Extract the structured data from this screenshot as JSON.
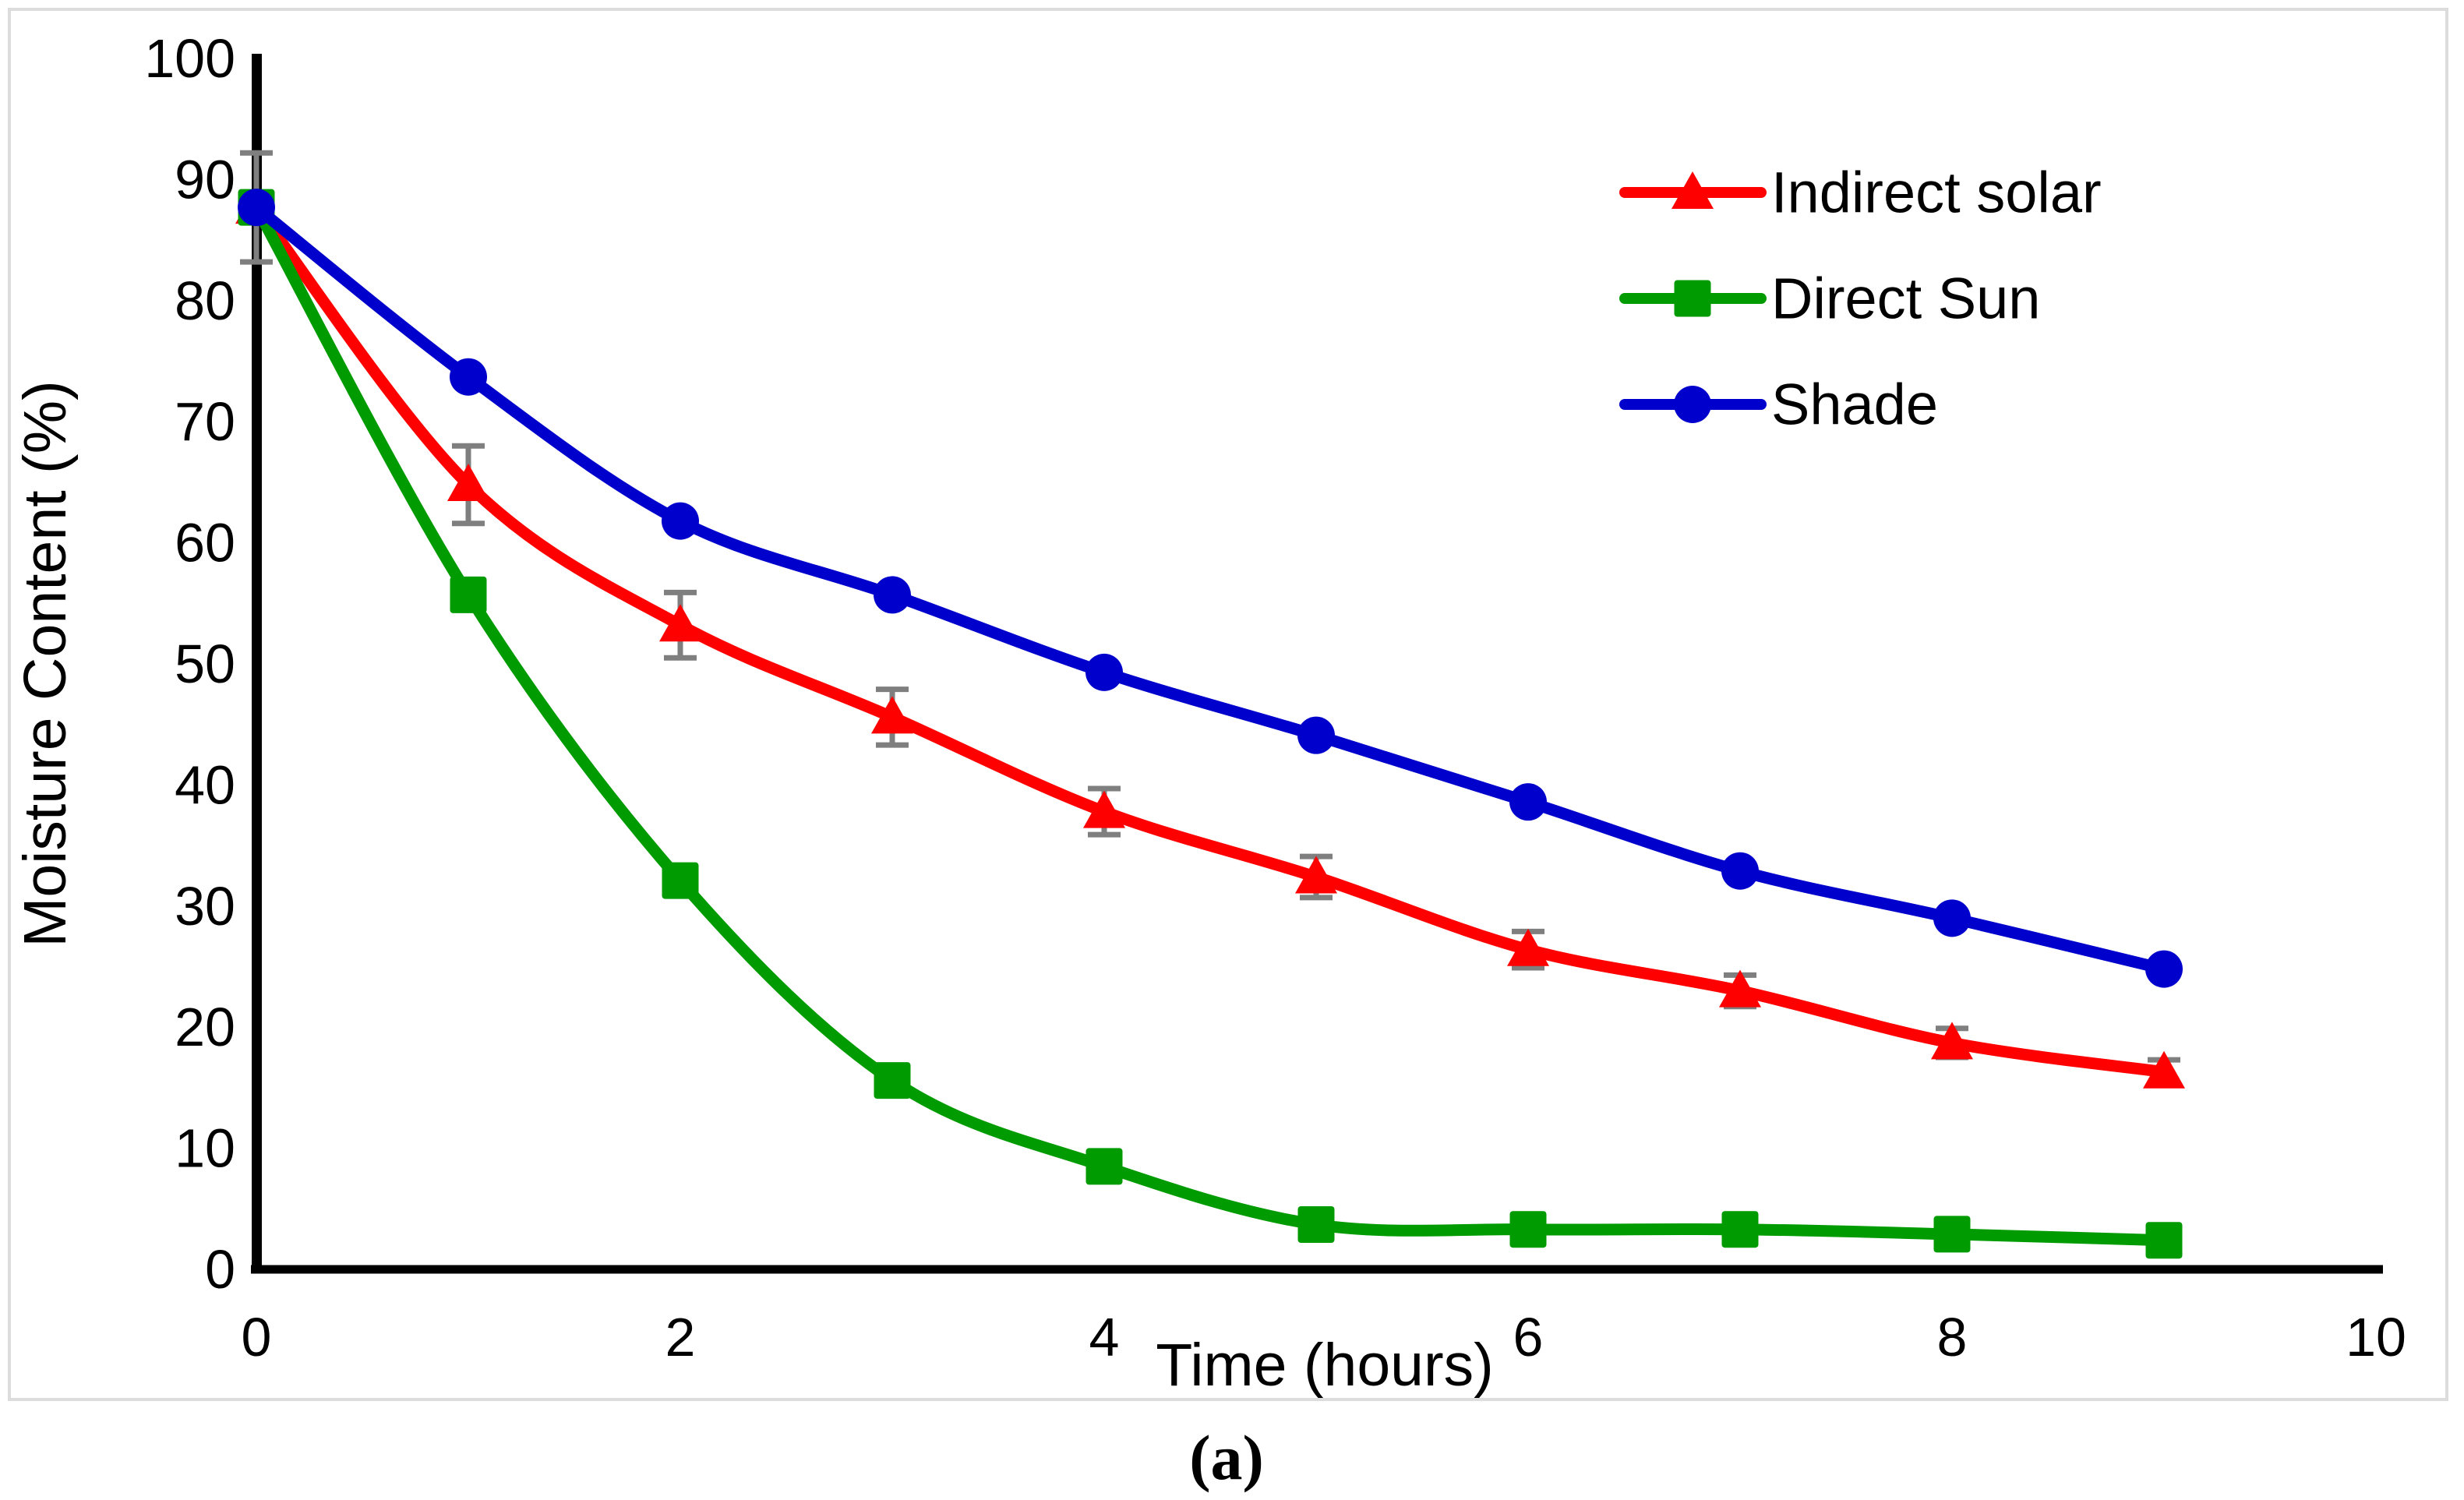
{
  "figure": {
    "caption": "(a)",
    "border_color": "#dcdcdc",
    "background": "#ffffff"
  },
  "chart_data": {
    "type": "line",
    "title": "",
    "xlabel": "Time (hours)",
    "ylabel": "Moisture Content (%)",
    "x": [
      0,
      1,
      2,
      3,
      4,
      5,
      6,
      7,
      8,
      9
    ],
    "xlim": [
      0,
      10
    ],
    "ylim": [
      0,
      100
    ],
    "x_ticks": [
      0,
      2,
      4,
      6,
      8,
      10
    ],
    "y_ticks": [
      0,
      10,
      20,
      30,
      40,
      50,
      60,
      70,
      80,
      90,
      100
    ],
    "grid": false,
    "legend_position": "inside-upper-right",
    "line_smoothing": true,
    "error_bar_color": "#7f7f7f",
    "axis_color": "#000000",
    "series": [
      {
        "name": "Indirect solar",
        "color": "#ff0000",
        "marker": "triangle",
        "values": [
          87.7,
          64.8,
          53.2,
          45.6,
          37.8,
          32.4,
          26.4,
          23.0,
          18.7,
          16.3
        ],
        "error": [
          0,
          3.2,
          2.7,
          2.3,
          1.9,
          1.7,
          1.5,
          1.3,
          1.2,
          1.0
        ]
      },
      {
        "name": "Direct Sun",
        "color": "#009b00",
        "marker": "square",
        "values": [
          87.7,
          55.7,
          32.1,
          15.6,
          8.5,
          3.7,
          3.3,
          3.3,
          2.9,
          2.4
        ],
        "error": [
          0,
          0,
          0,
          0,
          0,
          0,
          0,
          0,
          0,
          0
        ]
      },
      {
        "name": "Shade",
        "color": "#0000cc",
        "marker": "circle",
        "values": [
          87.7,
          73.7,
          61.8,
          55.7,
          49.3,
          44.1,
          38.6,
          32.9,
          29.0,
          24.8
        ],
        "error": [
          4.5,
          0,
          0,
          0,
          0,
          0,
          0,
          0,
          0,
          0
        ]
      }
    ]
  }
}
